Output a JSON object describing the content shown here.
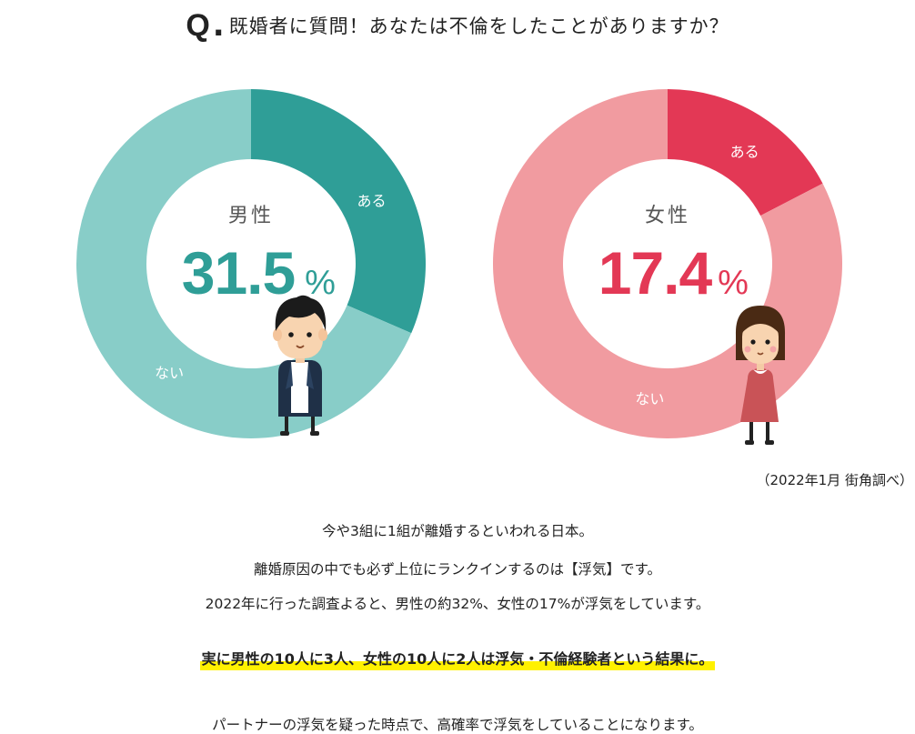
{
  "question": {
    "mark": "Q",
    "dot": ".",
    "text": "既婚者に質問！あなたは不倫をしたことがありますか？"
  },
  "chart_data": [
    {
      "type": "pie",
      "center_label": "男性",
      "value_text": "31.5",
      "unit": "%",
      "slices": [
        {
          "label": "ある",
          "value": 31.5,
          "color": "#2f9e97"
        },
        {
          "label": "ない",
          "value": 68.5,
          "color": "#88cdc8"
        }
      ]
    },
    {
      "type": "pie",
      "center_label": "女性",
      "value_text": "17.4",
      "unit": "%",
      "slices": [
        {
          "label": "ある",
          "value": 17.4,
          "color": "#e33855"
        },
        {
          "label": "ない",
          "value": 82.6,
          "color": "#f19ba0"
        }
      ]
    }
  ],
  "source": "（2022年1月 街角調べ）",
  "body": {
    "line1": "今や3組に1組が離婚するといわれる日本。",
    "line2": "離婚原因の中でも必ず上位にランクインするのは【浮気】です。",
    "line3": "2022年に行った調査よると、男性の約32%、女性の17%が浮気をしています。",
    "highlight": "実に男性の10人に3人、女性の10人に2人は浮気・不倫経験者という結果に。",
    "line4": "パートナーの浮気を疑った時点で、高確率で浮気をしていることになります。"
  },
  "icons": [
    "man-illustration",
    "woman-illustration"
  ]
}
